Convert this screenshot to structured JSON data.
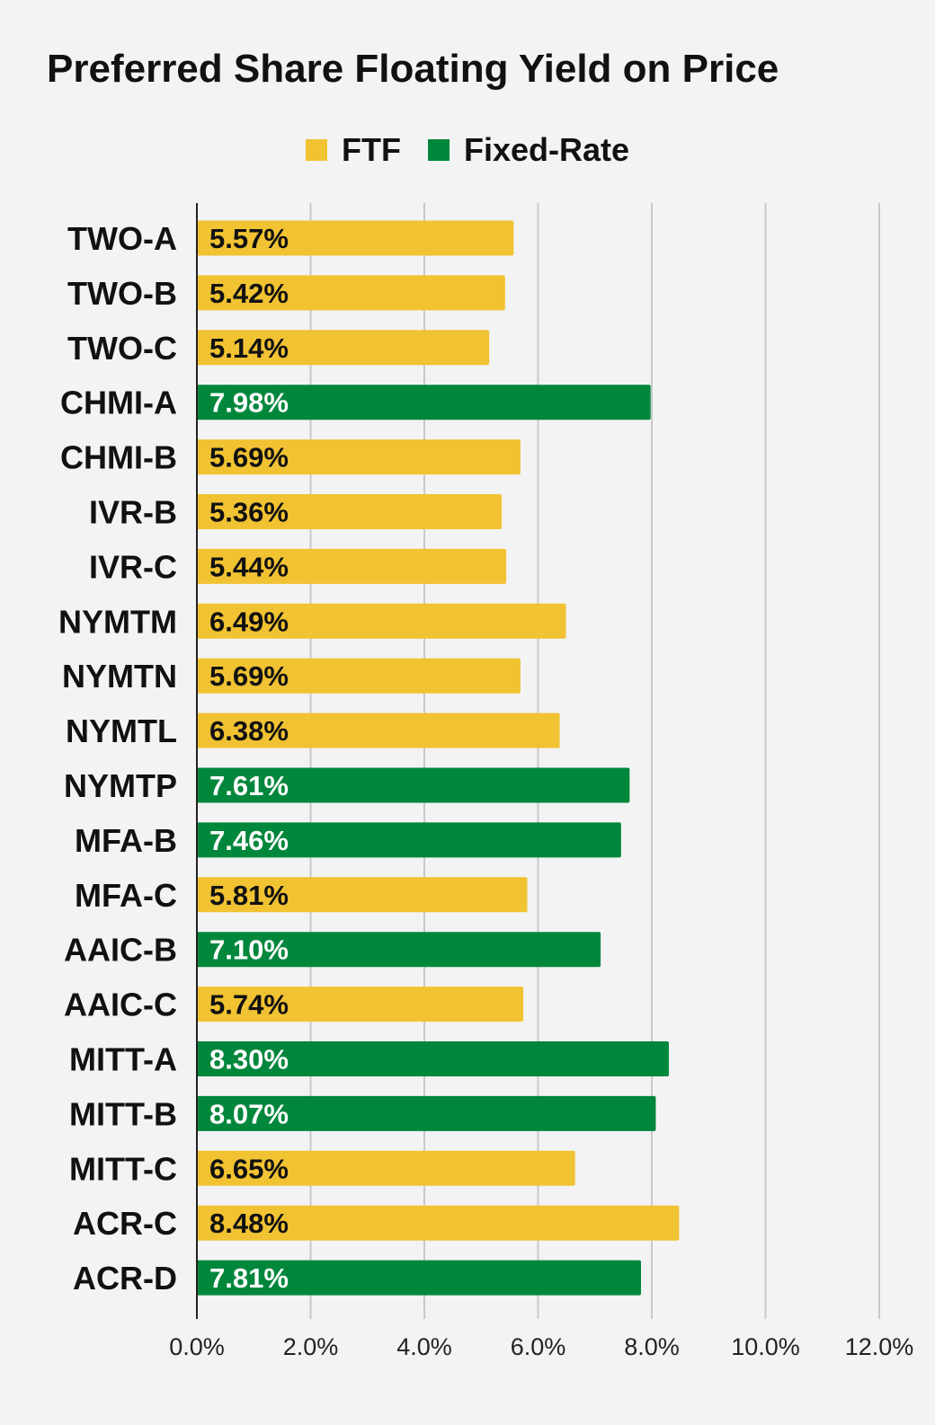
{
  "chart_data": {
    "type": "bar",
    "orientation": "horizontal",
    "title": "Preferred Share Floating Yield on Price",
    "legend": {
      "placement": "top-center",
      "entries": [
        {
          "label": "FTF",
          "color": "#f1c232"
        },
        {
          "label": "Fixed-Rate",
          "color": "#00873c"
        }
      ]
    },
    "categories": [
      "TWO-A",
      "TWO-B",
      "TWO-C",
      "CHMI-A",
      "CHMI-B",
      "IVR-B",
      "IVR-C",
      "NYMTM",
      "NYMTN",
      "NYMTL",
      "NYMTP",
      "MFA-B",
      "MFA-C",
      "AAIC-B",
      "AAIC-C",
      "MITT-A",
      "MITT-B",
      "MITT-C",
      "ACR-C",
      "ACR-D"
    ],
    "values": [
      5.57,
      5.42,
      5.14,
      7.98,
      5.69,
      5.36,
      5.44,
      6.49,
      5.69,
      6.38,
      7.61,
      7.46,
      5.81,
      7.1,
      5.74,
      8.3,
      8.07,
      6.65,
      8.48,
      7.81
    ],
    "value_labels": [
      "5.57%",
      "5.42%",
      "5.14%",
      "7.98%",
      "5.69%",
      "5.36%",
      "5.44%",
      "6.49%",
      "5.69%",
      "6.38%",
      "7.61%",
      "7.46%",
      "5.81%",
      "7.10%",
      "5.74%",
      "8.30%",
      "8.07%",
      "6.65%",
      "8.48%",
      "7.81%"
    ],
    "bar_groups": [
      "FTF",
      "FTF",
      "FTF",
      "Fixed-Rate",
      "FTF",
      "FTF",
      "FTF",
      "FTF",
      "FTF",
      "FTF",
      "Fixed-Rate",
      "Fixed-Rate",
      "FTF",
      "Fixed-Rate",
      "FTF",
      "Fixed-Rate",
      "Fixed-Rate",
      "FTF",
      "FTF",
      "Fixed-Rate"
    ],
    "xlim": [
      0,
      12
    ],
    "x_ticks": [
      0,
      2,
      4,
      6,
      8,
      10,
      12
    ],
    "x_tick_labels": [
      "0.0%",
      "2.0%",
      "4.0%",
      "6.0%",
      "8.0%",
      "10.0%",
      "12.0%"
    ],
    "grid": "vertical",
    "colors": {
      "FTF": "#f1c232",
      "Fixed-Rate": "#00873c",
      "label_on_ftf": "#111111",
      "label_on_fixed": "#ffffff",
      "gridline": "#c8c8c8",
      "axis": "#222222"
    }
  }
}
